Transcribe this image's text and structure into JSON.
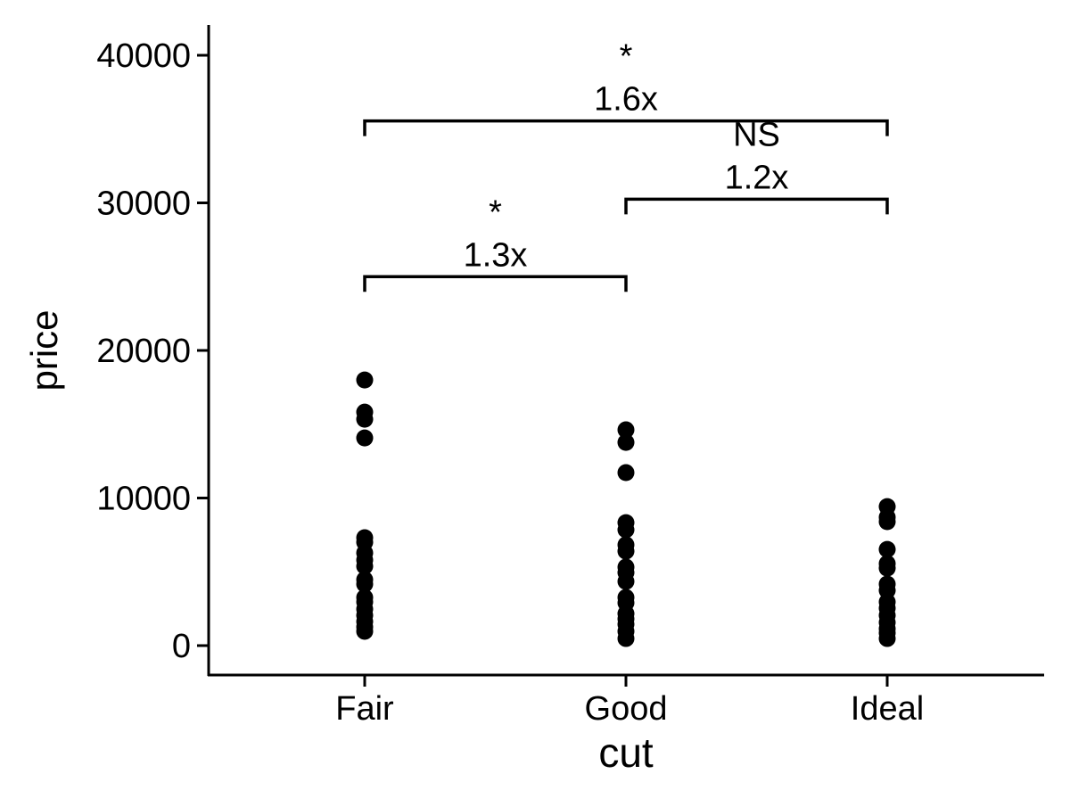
{
  "chart_data": {
    "type": "scatter",
    "xlabel": "cut",
    "ylabel": "price",
    "categories": [
      "Fair",
      "Good",
      "Ideal"
    ],
    "ylim": [
      -2000,
      42000
    ],
    "yticks": [
      0,
      10000,
      20000,
      30000,
      40000
    ],
    "ytick_labels": [
      "0",
      "10000",
      "20000",
      "30000",
      "40000"
    ],
    "grid": false,
    "point_color": "#000000",
    "series": [
      {
        "category": "Fair",
        "values": [
          18000,
          15820,
          15340,
          14070,
          7310,
          7000,
          6280,
          5800,
          5380,
          4470,
          4170,
          3260,
          2960,
          2480,
          2050,
          1630,
          1270,
          970
        ]
      },
      {
        "category": "Good",
        "values": [
          14620,
          13770,
          11720,
          8330,
          7850,
          6830,
          6400,
          5320,
          4950,
          4350,
          3260,
          2900,
          2170,
          1810,
          1450,
          970,
          480
        ]
      },
      {
        "category": "Ideal",
        "values": [
          9420,
          8700,
          8400,
          6520,
          5560,
          5250,
          4170,
          3740,
          2960,
          2540,
          2050,
          1570,
          1150,
          850,
          480
        ]
      }
    ],
    "comparisons": [
      {
        "from": "Fair",
        "to": "Good",
        "y": 25000,
        "significance": "*",
        "fold_change": "1.3x"
      },
      {
        "from": "Good",
        "to": "Ideal",
        "y": 30250,
        "significance": "NS",
        "fold_change": "1.2x"
      },
      {
        "from": "Fair",
        "to": "Ideal",
        "y": 35550,
        "significance": "*",
        "fold_change": "1.6x"
      }
    ]
  }
}
